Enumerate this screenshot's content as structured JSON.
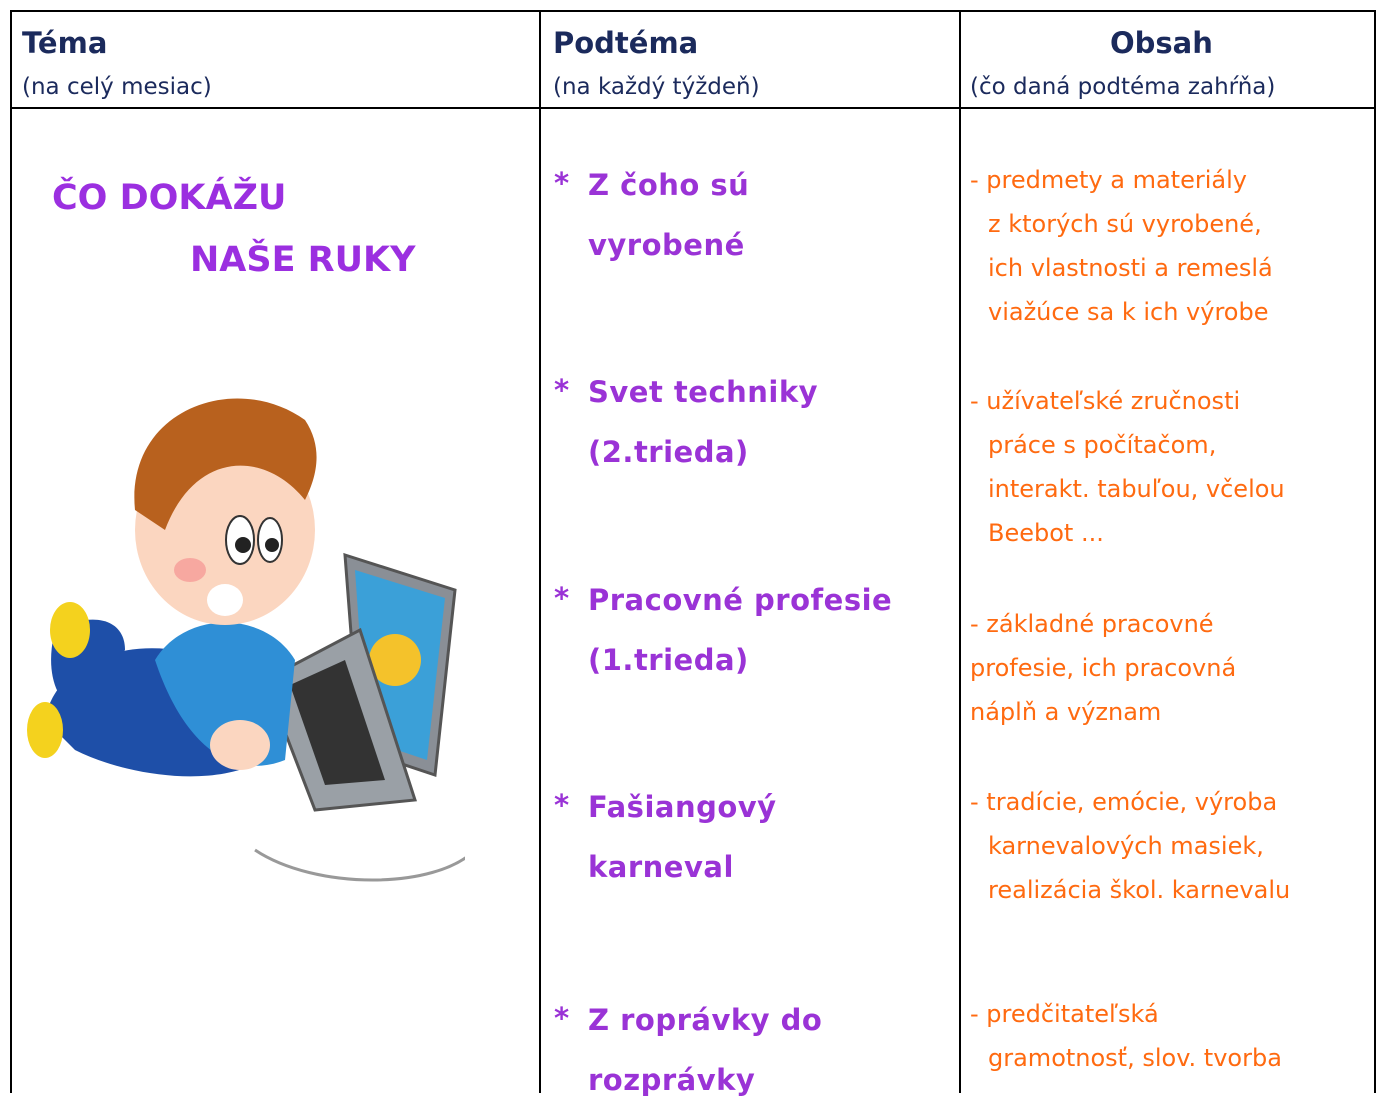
{
  "header": {
    "columns": [
      {
        "title": "Téma",
        "subtitle": "(na celý mesiac)"
      },
      {
        "title": "Podtéma",
        "subtitle": "(na každý týždeň)"
      },
      {
        "title": "Obsah",
        "subtitle": "(čo daná podtéma zahŕňa)"
      }
    ]
  },
  "theme": {
    "lines": [
      "ČO DOKÁŽU",
      "NAŠE RUKY"
    ]
  },
  "bullet": "*",
  "subtopics": [
    {
      "lines": [
        "Z čoho sú",
        "vyrobené"
      ]
    },
    {
      "lines": [
        "Svet techniky",
        "(2.trieda)"
      ]
    },
    {
      "lines": [
        "Pracovné profesie",
        "(1.trieda)"
      ]
    },
    {
      "lines": [
        "Fašiangový",
        "karneval"
      ]
    },
    {
      "lines": [
        "Z roprávky do",
        "rozprávky"
      ]
    }
  ],
  "contents": [
    {
      "lines": [
        "- predmety a materiály",
        "z ktorých sú vyrobené,",
        "ich vlastnosti a remeslá",
        "viažúce sa k ich výrobe"
      ]
    },
    {
      "lines": [
        "- užívateľské zručnosti",
        "práce s počítačom,",
        "interakt. tabuľou, včelou",
        "Beebot ..."
      ]
    },
    {
      "lines": [
        "- základné pracovné",
        "profesie, ich pracovná",
        "náplň a význam"
      ]
    },
    {
      "lines": [
        "- tradície, emócie, výroba",
        "karnevalových masiek,",
        "realizácia škol. karnevalu"
      ]
    },
    {
      "lines": [
        "- predčitateľská",
        "gramotnosť, slov. tvorba"
      ]
    }
  ]
}
